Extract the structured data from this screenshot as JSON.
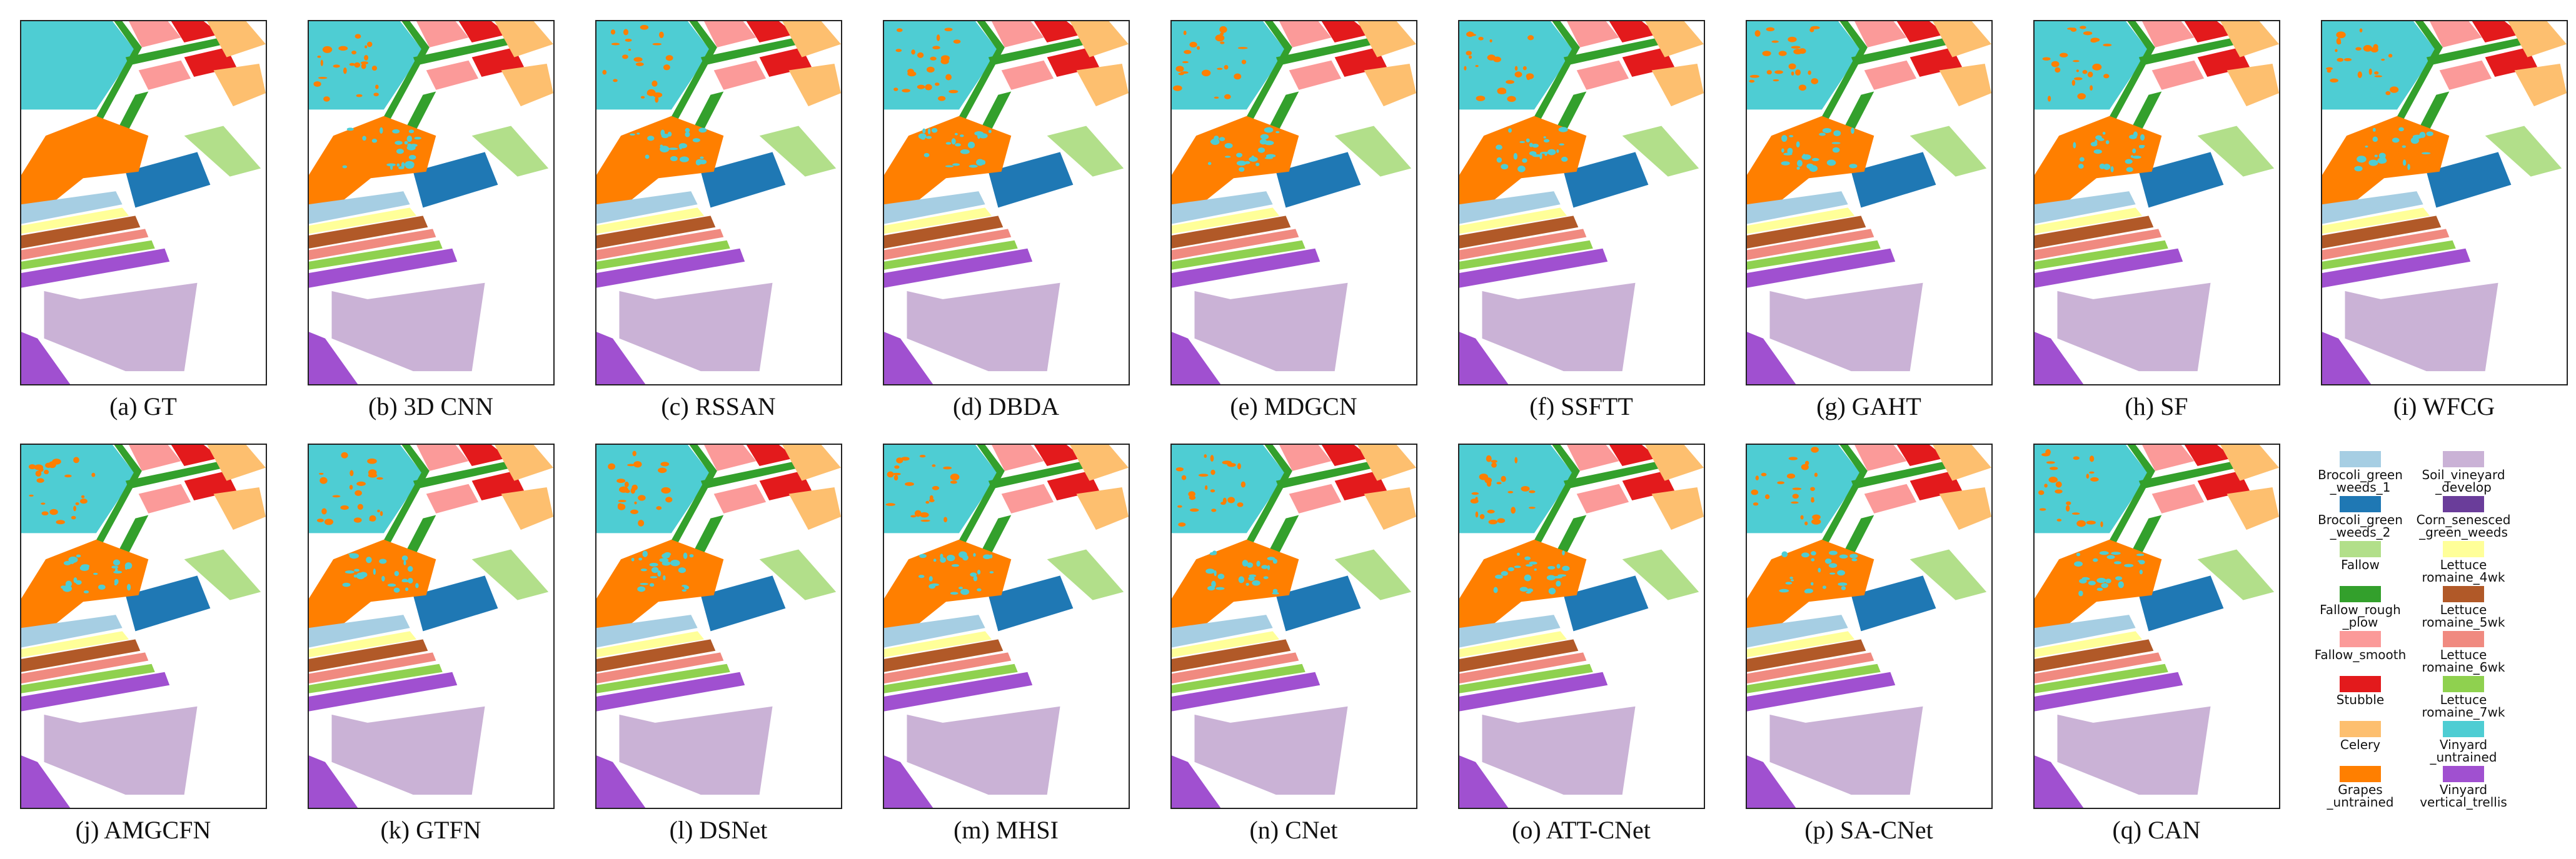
{
  "panels": [
    {
      "caption": "(a) GT"
    },
    {
      "caption": "(b) 3D CNN"
    },
    {
      "caption": "(c) RSSAN"
    },
    {
      "caption": "(d) DBDA"
    },
    {
      "caption": "(e) MDGCN"
    },
    {
      "caption": "(f) SSFTT"
    },
    {
      "caption": "(g) GAHT"
    },
    {
      "caption": "(h) SF"
    },
    {
      "caption": "(i) WFCG"
    },
    {
      "caption": "(j) AMGCFN"
    },
    {
      "caption": "(k) GTFN"
    },
    {
      "caption": "(l) DSNet"
    },
    {
      "caption": "(m) MHSI"
    },
    {
      "caption": "(n) CNet"
    },
    {
      "caption": "(o) ATT-CNet"
    },
    {
      "caption": "(p) SA-CNet"
    },
    {
      "caption": "(q) CAN"
    }
  ],
  "legend": [
    {
      "label": "Brocoli_green\n_weeds_1",
      "color": "#a6cee3"
    },
    {
      "label": "Brocoli_green\n_weeds_2",
      "color": "#1f78b4"
    },
    {
      "label": "Fallow",
      "color": "#b2df8a"
    },
    {
      "label": "Fallow_rough\n_plow",
      "color": "#33a02c"
    },
    {
      "label": "Fallow_smooth",
      "color": "#fb9a99"
    },
    {
      "label": "Stubble",
      "color": "#e31a1c"
    },
    {
      "label": "Celery",
      "color": "#fdbf6f"
    },
    {
      "label": "Grapes\n_untrained",
      "color": "#ff7f00"
    },
    {
      "label": "Soil_vineyard\n_develop",
      "color": "#cab2d6"
    },
    {
      "label": "Corn_senesced\n_green_weeds",
      "color": "#6a3d9a"
    },
    {
      "label": "Lettuce\nromaine_4wk",
      "color": "#ffff99"
    },
    {
      "label": "Lettuce\nromaine_5wk",
      "color": "#b15928"
    },
    {
      "label": "Lettuce\nromaine_6wk",
      "color": "#f08a80"
    },
    {
      "label": "Lettuce\nromaine_7wk",
      "color": "#8fd14f"
    },
    {
      "label": "Vinyard\n_untrained",
      "color": "#4ecdd3"
    },
    {
      "label": "Vinyard\nvertical_trellis",
      "color": "#a050d0"
    }
  ]
}
